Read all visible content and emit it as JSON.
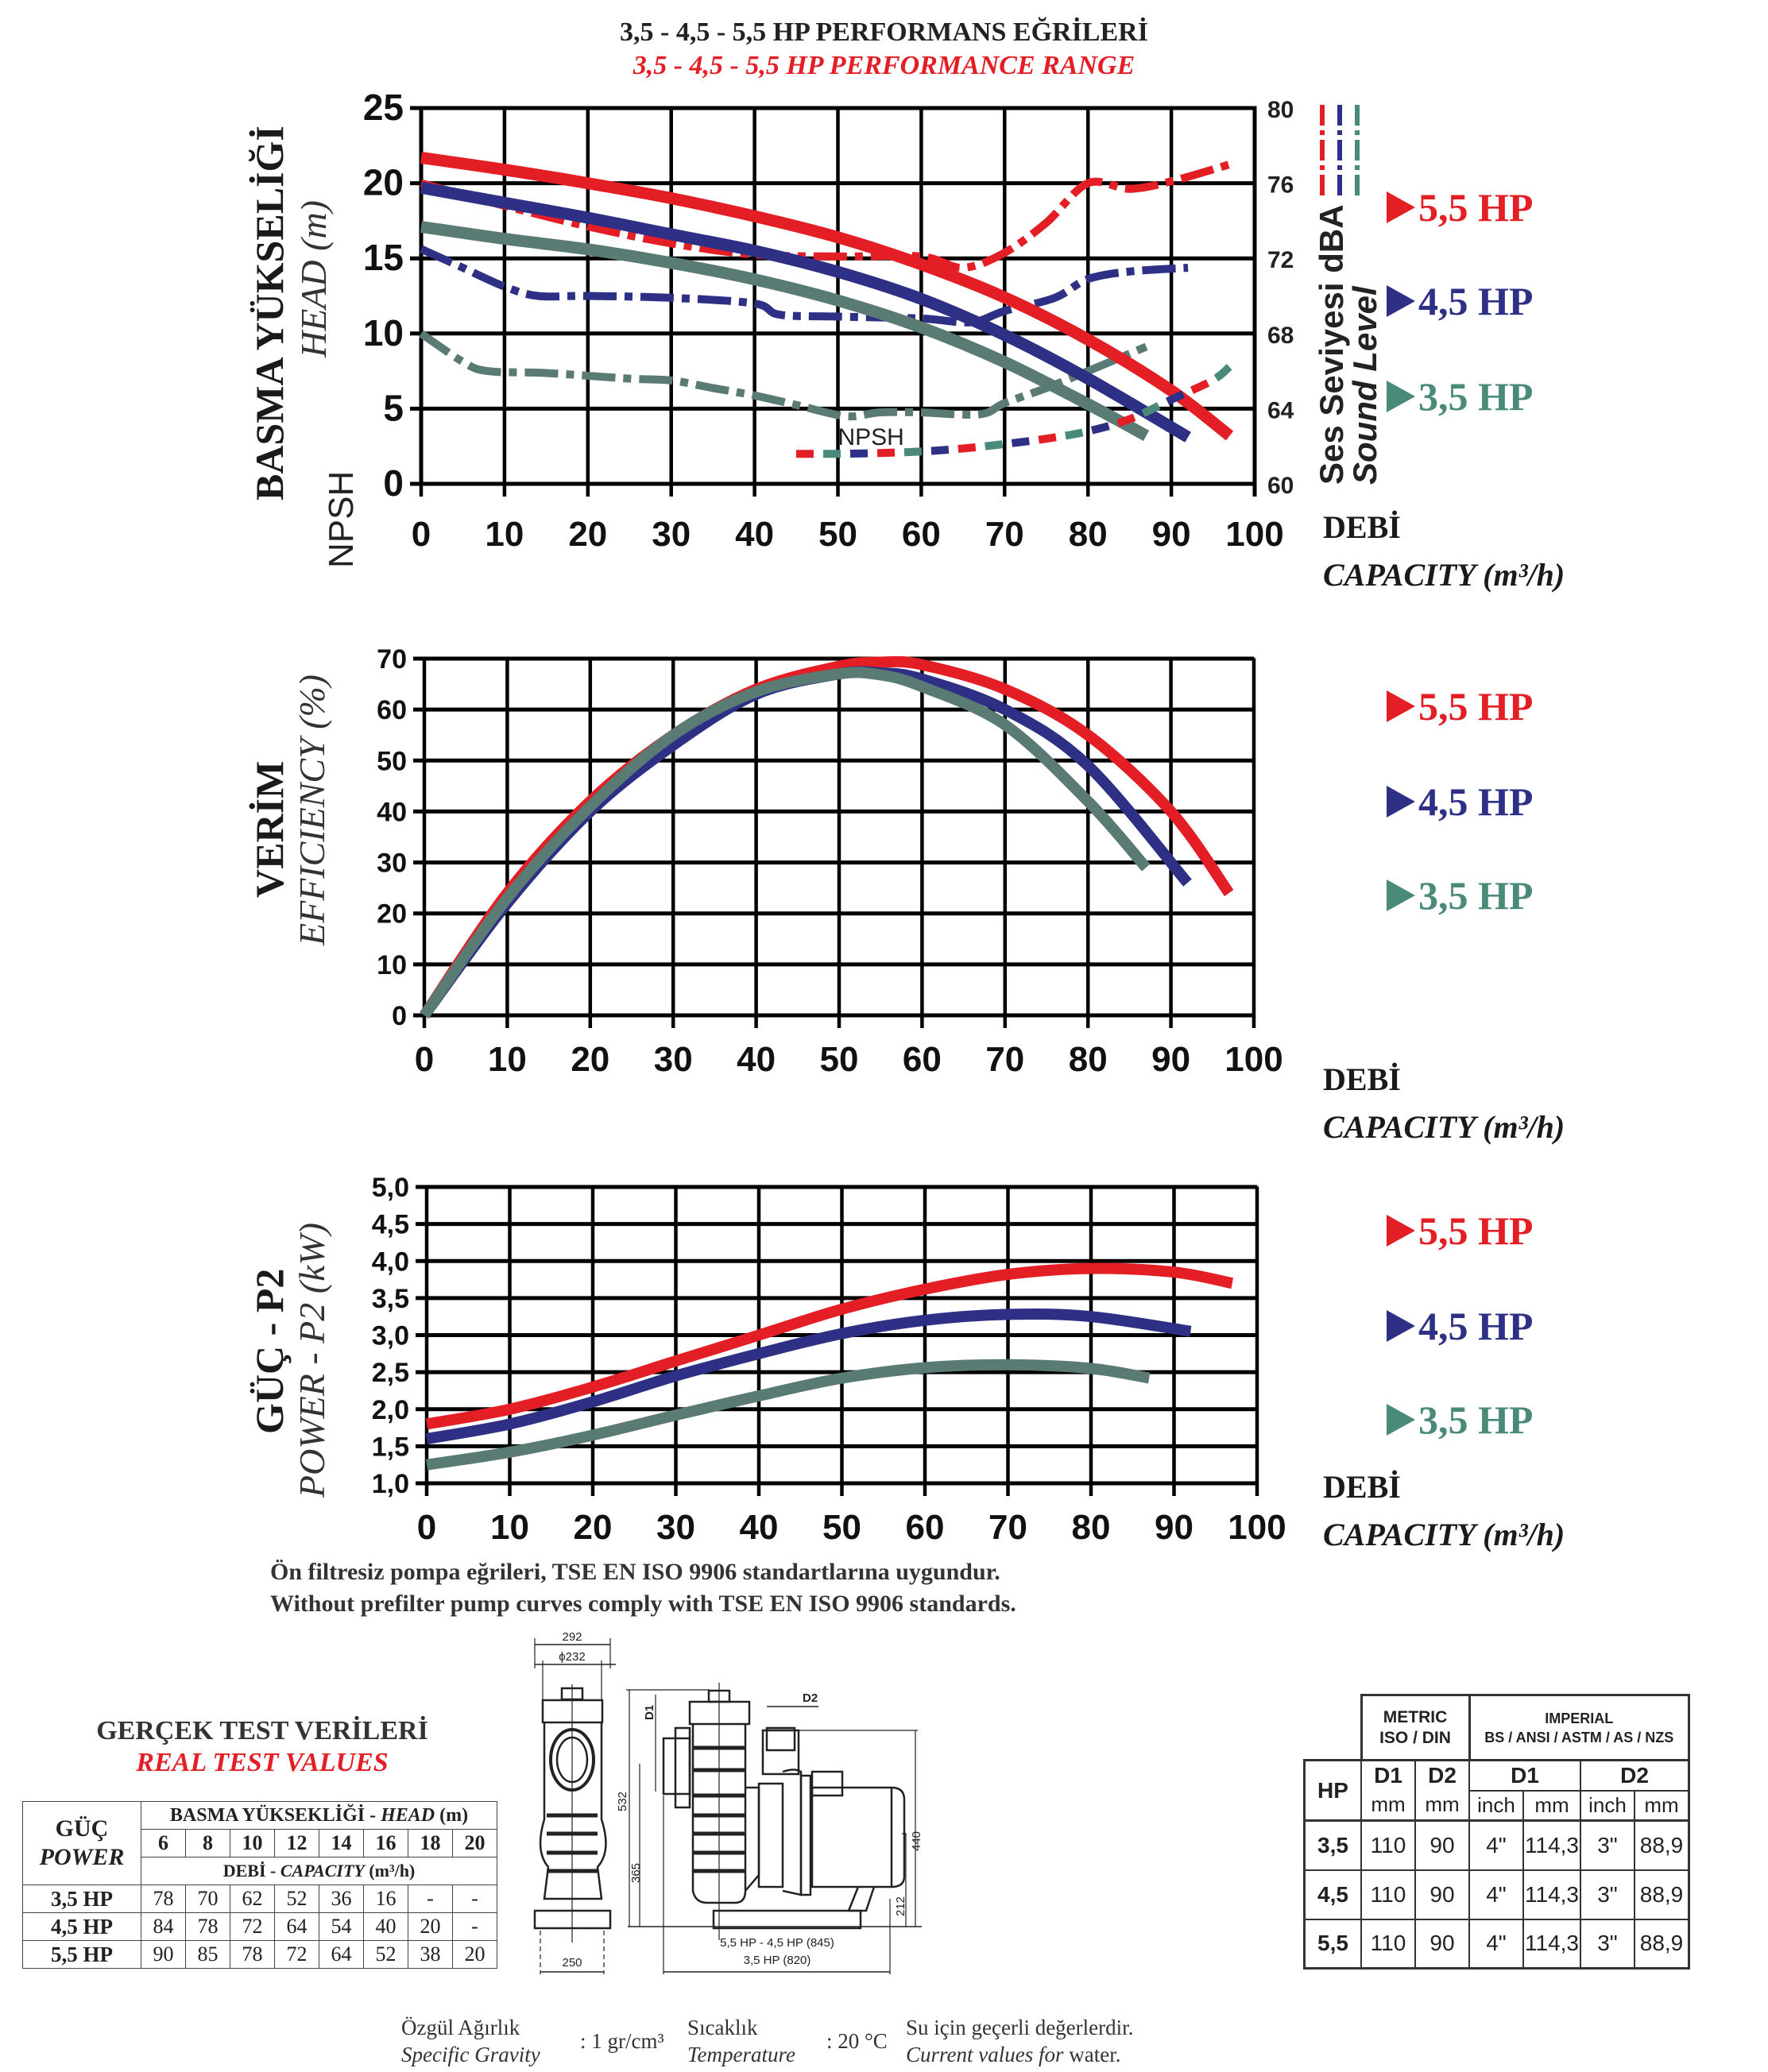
{
  "header": {
    "title_tr": "3,5 - 4,5 - 5,5 HP PERFORMANS EĞRİLERİ",
    "title_en": "3,5 - 4,5 - 5,5 HP PERFORMANCE RANGE"
  },
  "colors": {
    "hp55": "#e31e24",
    "hp45": "#2e3086",
    "hp35": "#5a7a74",
    "hp35_legend": "#4a8a7a"
  },
  "legend": [
    {
      "label": "5,5 HP",
      "color": "#e31e24"
    },
    {
      "label": "4,5 HP",
      "color": "#2e3086"
    },
    {
      "label": "3,5 HP",
      "color": "#4a8a7a"
    }
  ],
  "x_axis": {
    "label_tr": "DEBİ",
    "label_en": "CAPACITY (m³/h)",
    "ticks": [
      "0",
      "10",
      "20",
      "30",
      "40",
      "50",
      "60",
      "70",
      "80",
      "90",
      "100"
    ]
  },
  "chart_data": [
    {
      "type": "line",
      "title": "Head / NPSH / Sound Level",
      "ylabel_tr": "BASMA YÜKSELİĞİ",
      "ylabel_en": "HEAD (m)",
      "ylabel_npsh": "NPSH",
      "y2label_tr": "Ses Seviyesi dBA",
      "y2label_en": "Sound Level",
      "npsh_annotation": "NPSH",
      "xlim": [
        0,
        100
      ],
      "ylim": [
        0,
        25
      ],
      "y2lim": [
        60,
        80
      ],
      "yticks": [
        "0",
        "5",
        "10",
        "15",
        "20",
        "25"
      ],
      "y2ticks": [
        "60",
        "64",
        "68",
        "72",
        "76",
        "80"
      ],
      "grid": true,
      "head_series": [
        {
          "name": "5,5 HP",
          "color": "#e31e24",
          "x": [
            0,
            10,
            20,
            30,
            40,
            50,
            60,
            70,
            80,
            90,
            97
          ],
          "y": [
            21.7,
            20.9,
            20.0,
            19.0,
            17.8,
            16.4,
            14.6,
            12.4,
            9.6,
            6.2,
            3.2
          ]
        },
        {
          "name": "4,5 HP",
          "color": "#2e3086",
          "x": [
            0,
            10,
            20,
            30,
            40,
            50,
            60,
            70,
            80,
            92
          ],
          "y": [
            19.7,
            18.7,
            17.7,
            16.6,
            15.5,
            14.1,
            12.3,
            9.9,
            7.0,
            3.1
          ]
        },
        {
          "name": "3,5 HP",
          "color": "#5a7a74",
          "x": [
            0,
            10,
            20,
            30,
            40,
            50,
            60,
            70,
            80,
            87
          ],
          "y": [
            17.1,
            16.3,
            15.6,
            14.7,
            13.6,
            12.2,
            10.4,
            8.1,
            5.3,
            3.2
          ]
        }
      ],
      "sound_series": [
        {
          "name": "5,5 HP",
          "color": "#e31e24",
          "x": [
            0,
            10,
            20,
            30,
            40,
            50,
            60,
            65,
            70,
            75,
            80,
            85,
            90,
            97
          ],
          "y": [
            76,
            74.8,
            73.7,
            72.8,
            72.2,
            72.1,
            72.1,
            71.5,
            72.3,
            73.9,
            76,
            75.7,
            76.1,
            77.0
          ]
        },
        {
          "name": "4,5 HP",
          "color": "#2e3086",
          "x": [
            0,
            5,
            10,
            14,
            20,
            30,
            40,
            43,
            50,
            60,
            66,
            70,
            76,
            80,
            85,
            92
          ],
          "y": [
            72.5,
            71.5,
            70.5,
            70,
            70,
            69.9,
            69.6,
            69,
            68.9,
            68.8,
            68.6,
            69.2,
            69.9,
            70.9,
            71.3,
            71.5
          ]
        },
        {
          "name": "3,5 HP",
          "color": "#5a7a74",
          "x": [
            0,
            5,
            8,
            15,
            25,
            30,
            35,
            40,
            45,
            51,
            55,
            60,
            67,
            70,
            75,
            80,
            87
          ],
          "y": [
            68,
            66.5,
            66.0,
            65.9,
            65.6,
            65.5,
            65.1,
            64.7,
            64.2,
            63.6,
            63.8,
            63.8,
            63.7,
            64.3,
            65.1,
            66.0,
            67.3
          ]
        }
      ],
      "npsh_series": {
        "x": [
          45,
          50,
          55,
          60,
          65,
          70,
          75,
          80,
          85,
          90,
          95,
          97
        ],
        "y": [
          2.0,
          2.0,
          2.05,
          2.15,
          2.35,
          2.65,
          3.0,
          3.5,
          4.3,
          5.6,
          6.9,
          7.8
        ],
        "dash_colors": [
          "#e31e24",
          "#4a8a7a",
          "#2e3086"
        ]
      }
    },
    {
      "type": "line",
      "title": "Efficiency",
      "ylabel_tr": "VERİM",
      "ylabel_en": "EFFICIENCY (%)",
      "xlim": [
        0,
        100
      ],
      "ylim": [
        0,
        70
      ],
      "yticks": [
        "0",
        "10",
        "20",
        "30",
        "40",
        "50",
        "60",
        "70"
      ],
      "grid": true,
      "series": [
        {
          "name": "5,5 HP",
          "color": "#e31e24",
          "x": [
            0,
            10,
            20,
            30,
            40,
            50,
            55,
            60,
            70,
            80,
            90,
            97
          ],
          "y": [
            0,
            24,
            42,
            55,
            64,
            68.5,
            69.3,
            68.8,
            64,
            55,
            40,
            24
          ]
        },
        {
          "name": "4,5 HP",
          "color": "#2e3086",
          "x": [
            0,
            10,
            20,
            30,
            40,
            50,
            55,
            60,
            70,
            80,
            92
          ],
          "y": [
            0,
            22,
            40,
            53,
            63,
            67,
            67.2,
            66,
            60,
            49,
            26
          ]
        },
        {
          "name": "3,5 HP",
          "color": "#5a7a74",
          "x": [
            0,
            10,
            20,
            30,
            40,
            50,
            55,
            60,
            70,
            80,
            87
          ],
          "y": [
            0,
            23,
            41,
            55,
            63.5,
            67,
            66.8,
            64.5,
            57,
            42,
            29
          ]
        }
      ]
    },
    {
      "type": "line",
      "title": "Power P2",
      "ylabel_tr": "GÜÇ - P2",
      "ylabel_en": "POWER - P2 (kW)",
      "xlim": [
        0,
        100
      ],
      "ylim": [
        1.0,
        5.0
      ],
      "yticks": [
        "1,0",
        "1,5",
        "2,0",
        "2,5",
        "3,0",
        "3,5",
        "4,0",
        "4,5",
        "5,0"
      ],
      "grid": true,
      "series": [
        {
          "name": "5,5 HP",
          "color": "#e31e24",
          "x": [
            0,
            10,
            20,
            30,
            40,
            50,
            60,
            70,
            80,
            90,
            97
          ],
          "y": [
            1.8,
            2.0,
            2.3,
            2.65,
            3.0,
            3.35,
            3.62,
            3.82,
            3.9,
            3.85,
            3.7
          ]
        },
        {
          "name": "4,5 HP",
          "color": "#2e3086",
          "x": [
            0,
            10,
            20,
            30,
            40,
            50,
            60,
            70,
            80,
            92
          ],
          "y": [
            1.6,
            1.8,
            2.1,
            2.45,
            2.75,
            3.02,
            3.2,
            3.28,
            3.25,
            3.05
          ]
        },
        {
          "name": "3,5 HP",
          "color": "#5a7a74",
          "x": [
            0,
            10,
            20,
            30,
            40,
            50,
            60,
            70,
            80,
            87
          ],
          "y": [
            1.25,
            1.42,
            1.65,
            1.92,
            2.18,
            2.42,
            2.56,
            2.6,
            2.55,
            2.42
          ]
        }
      ]
    }
  ],
  "notes": {
    "line_tr": "Ön filtresiz pompa eğrileri, TSE EN ISO 9906 standartlarına uygundur.",
    "line_en": "Without prefilter pump curves comply with TSE EN ISO 9906 standards."
  },
  "test_values": {
    "title_tr": "GERÇEK TEST VERİLERİ",
    "title_en": "REAL TEST VALUES",
    "power_tr": "GÜÇ",
    "power_en": "POWER",
    "head_tr": "BASMA YÜKSEKLİĞİ - ",
    "head_en": "HEAD",
    "head_unit": " (m)",
    "capacity_tr": "DEBİ - ",
    "capacity_en": "CAPACITY",
    "capacity_unit": " (m³/h)",
    "heads": [
      "6",
      "8",
      "10",
      "12",
      "14",
      "16",
      "18",
      "20"
    ],
    "rows": [
      {
        "hp": "3,5 HP",
        "values": [
          "78",
          "70",
          "62",
          "52",
          "36",
          "16",
          "-",
          "-"
        ]
      },
      {
        "hp": "4,5 HP",
        "values": [
          "84",
          "78",
          "72",
          "64",
          "54",
          "40",
          "20",
          "-"
        ]
      },
      {
        "hp": "5,5 HP",
        "values": [
          "90",
          "85",
          "78",
          "72",
          "64",
          "52",
          "38",
          "20"
        ]
      }
    ]
  },
  "drawing": {
    "dim_292": "292",
    "dim_232": "ϕ232",
    "dim_250": "250",
    "dim_532": "532",
    "dim_365": "365",
    "dim_440": "440",
    "dim_212": "212",
    "label_d1": "D1",
    "label_d2": "D2",
    "length_55_45": "5,5 HP - 4,5 HP (845)",
    "length_35": "3,5 HP (820)"
  },
  "dimensions_table": {
    "metric_title": "METRIC",
    "metric_sub": "ISO / DIN",
    "imperial_title": "IMPERIAL",
    "imperial_sub": "BS / ANSI / ASTM / AS /  NZS",
    "hp_header": "HP",
    "d1": "D1",
    "d2": "D2",
    "mm": "mm",
    "inch": "inch",
    "rows": [
      {
        "hp": "3,5",
        "d1_mm": "110",
        "d2_mm": "90",
        "d1_inch": "4\"",
        "d1_imm": "114,3",
        "d2_inch": "3\"",
        "d2_imm": "88,9"
      },
      {
        "hp": "4,5",
        "d1_mm": "110",
        "d2_mm": "90",
        "d1_inch": "4\"",
        "d1_imm": "114,3",
        "d2_inch": "3\"",
        "d2_imm": "88,9"
      },
      {
        "hp": "5,5",
        "d1_mm": "110",
        "d2_mm": "90",
        "d1_inch": "4\"",
        "d1_imm": "114,3",
        "d2_inch": "3\"",
        "d2_imm": "88,9"
      }
    ]
  },
  "footer": {
    "gravity_tr": "Özgül Ağırlık",
    "gravity_en": "Specific Gravity",
    "gravity_value": ": 1 gr/cm³",
    "temp_tr": "Sıcaklık",
    "temp_en": "Temperature",
    "temp_value": ": 20 °C",
    "valid_tr": "Su için geçerli değerlerdir.",
    "valid_en_italic": "Current values for",
    "valid_en_tail": " water."
  }
}
